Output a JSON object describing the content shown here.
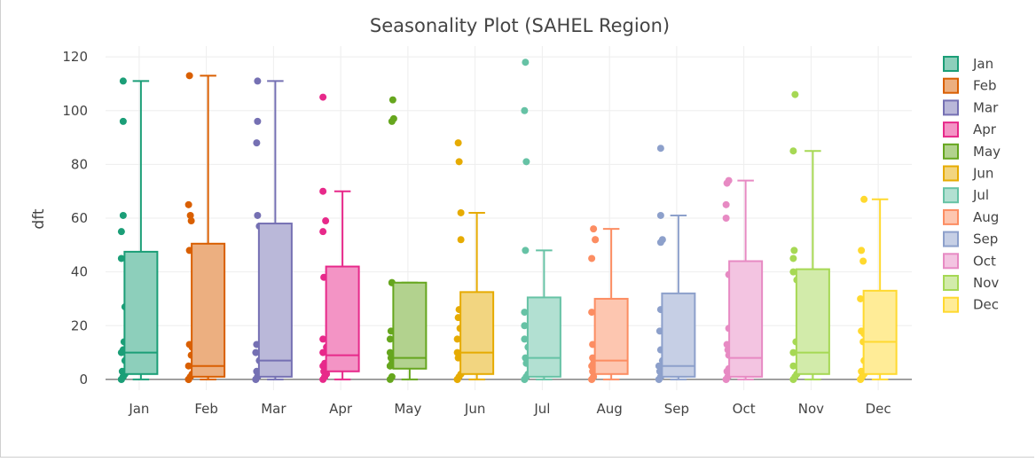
{
  "chart_data": {
    "type": "box",
    "title": "Seasonality Plot (SAHEL Region)",
    "xlabel": "",
    "ylabel": "dft",
    "ylim": [
      -4,
      124
    ],
    "yticks": [
      0,
      20,
      40,
      60,
      80,
      100,
      120
    ],
    "grid": true,
    "legend": "right",
    "series": [
      {
        "name": "Jan",
        "color": "#1b9e77",
        "fill": "#8dcfbb",
        "min": 0,
        "q1": 2,
        "median": 10,
        "q3": 47.5,
        "max": 111,
        "points": [
          111,
          96,
          61,
          55,
          45,
          27,
          14,
          11,
          10,
          7,
          3,
          2,
          1,
          1,
          0,
          0
        ]
      },
      {
        "name": "Feb",
        "color": "#d95f02",
        "fill": "#ecaf80",
        "min": 0,
        "q1": 1,
        "median": 5,
        "q3": 50.5,
        "max": 113,
        "points": [
          113,
          65,
          61,
          59,
          48,
          13,
          12,
          9,
          5,
          2,
          1,
          0,
          0,
          0
        ]
      },
      {
        "name": "Mar",
        "color": "#7570b3",
        "fill": "#bab8d9",
        "min": 0,
        "q1": 1,
        "median": 7,
        "q3": 58,
        "max": 111,
        "points": [
          111,
          96,
          88,
          61,
          57,
          13,
          10,
          7,
          3,
          2,
          1,
          1,
          0,
          0
        ]
      },
      {
        "name": "Apr",
        "color": "#e7298a",
        "fill": "#f394c5",
        "min": 0,
        "q1": 3,
        "median": 9,
        "q3": 42,
        "max": 70,
        "points": [
          105,
          70,
          59,
          55,
          38,
          15,
          12,
          10,
          6,
          5,
          4,
          3,
          2,
          1,
          1,
          0
        ]
      },
      {
        "name": "May",
        "color": "#66a61e",
        "fill": "#b2d28e",
        "min": 0,
        "q1": 4,
        "median": 8,
        "q3": 36,
        "max": 36,
        "points": [
          104,
          97,
          96,
          36,
          36,
          18,
          15,
          10,
          8,
          6,
          5,
          5,
          1,
          0
        ]
      },
      {
        "name": "Jun",
        "color": "#e6ab02",
        "fill": "#f2d580",
        "min": 0,
        "q1": 2,
        "median": 10,
        "q3": 32.5,
        "max": 62,
        "points": [
          88,
          81,
          62,
          52,
          26,
          23,
          19,
          15,
          10,
          8,
          2,
          1,
          0,
          0
        ]
      },
      {
        "name": "Jul",
        "color": "#66c2a5",
        "fill": "#b2e0d2",
        "min": 0,
        "q1": 1,
        "median": 8,
        "q3": 30.5,
        "max": 48,
        "points": [
          118,
          100,
          81,
          48,
          25,
          20,
          15,
          12,
          8,
          6,
          2,
          1,
          0,
          0
        ]
      },
      {
        "name": "Aug",
        "color": "#fc8d62",
        "fill": "#fdc6b0",
        "min": 0,
        "q1": 2,
        "median": 7,
        "q3": 30,
        "max": 56,
        "points": [
          56,
          52,
          52,
          45,
          25,
          13,
          8,
          6,
          5,
          3,
          1,
          0,
          0
        ]
      },
      {
        "name": "Sep",
        "color": "#8da0cb",
        "fill": "#c6cfe5",
        "min": 0,
        "q1": 1,
        "median": 5,
        "q3": 32,
        "max": 61,
        "points": [
          86,
          61,
          52,
          51,
          26,
          18,
          11,
          7,
          5,
          3,
          2,
          1,
          0,
          0
        ]
      },
      {
        "name": "Oct",
        "color": "#e78ac3",
        "fill": "#f3c4e1",
        "min": 0,
        "q1": 1,
        "median": 8,
        "q3": 44,
        "max": 74,
        "points": [
          74,
          73,
          65,
          60,
          39,
          19,
          13,
          11,
          9,
          4,
          3,
          1,
          0,
          0
        ]
      },
      {
        "name": "Nov",
        "color": "#a6d854",
        "fill": "#d2ebaa",
        "min": 0,
        "q1": 2,
        "median": 10,
        "q3": 41,
        "max": 85,
        "points": [
          106,
          85,
          48,
          45,
          40,
          37,
          14,
          10,
          5,
          2,
          1,
          0,
          0
        ]
      },
      {
        "name": "Dec",
        "color": "#ffd92f",
        "fill": "#ffec97",
        "min": 0,
        "q1": 2,
        "median": 14,
        "q3": 33,
        "max": 67,
        "points": [
          67,
          48,
          44,
          30,
          18,
          17,
          14,
          7,
          3,
          2,
          1,
          0,
          0
        ]
      }
    ]
  }
}
